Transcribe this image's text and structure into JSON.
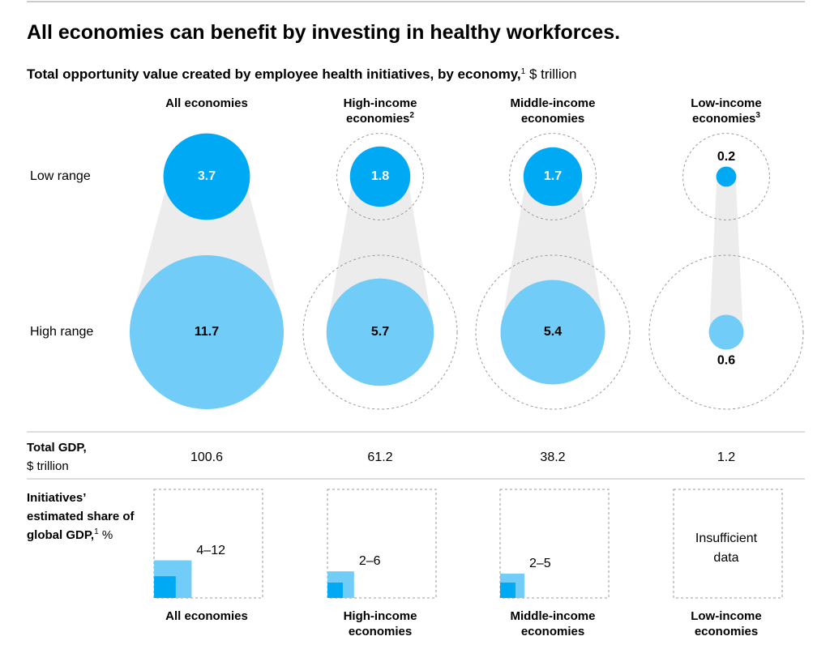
{
  "chart_data": {
    "type": "bubble",
    "title": "All economies can benefit by investing in healthy workforces.",
    "subtitle": "Total opportunity value created by employee health initiatives, by economy,",
    "subtitle_note": "1",
    "subtitle_unit": "$ trillion",
    "categories": [
      "All economies",
      "High-income economies",
      "Middle-income economies",
      "Low-income economies"
    ],
    "category_notes": [
      null,
      "2",
      null,
      "3"
    ],
    "series": [
      {
        "name": "Low range",
        "color": "#00a9f4",
        "values": [
          3.7,
          1.8,
          1.7,
          0.2
        ]
      },
      {
        "name": "High range",
        "color": "#71ccf7",
        "values": [
          11.7,
          5.7,
          5.4,
          0.6
        ]
      }
    ],
    "gdp": {
      "label": "Total GDP,",
      "unit": "$ trillion",
      "values": [
        100.6,
        61.2,
        38.2,
        1.2
      ]
    },
    "share": {
      "label": "Initiatives’ estimated share of global GDP,",
      "note": "1",
      "unit": "%",
      "low": [
        4,
        2,
        2,
        null
      ],
      "high": [
        12,
        6,
        5,
        null
      ],
      "value_labels": [
        "4–12",
        "2–6",
        "2–5",
        "Insufficient data"
      ]
    }
  }
}
